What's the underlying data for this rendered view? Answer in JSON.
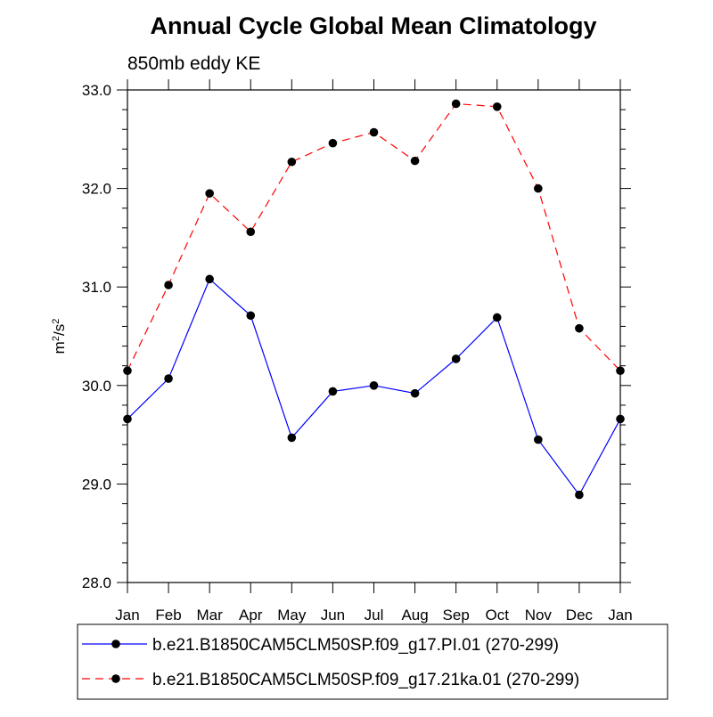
{
  "chart_data": {
    "type": "line",
    "title": "Annual Cycle Global Mean Climatology",
    "subtitle": "850mb eddy KE",
    "ylabel": "m²/s²",
    "xlabel": "",
    "categories": [
      "Jan",
      "Feb",
      "Mar",
      "Apr",
      "May",
      "Jun",
      "Jul",
      "Aug",
      "Sep",
      "Oct",
      "Nov",
      "Dec",
      "Jan"
    ],
    "ylim": [
      28.0,
      33.0
    ],
    "yticks": [
      28.0,
      29.0,
      30.0,
      31.0,
      32.0,
      33.0
    ],
    "ytick_labels": [
      "28.0",
      "29.0",
      "30.0",
      "31.0",
      "32.0",
      "33.0"
    ],
    "grid": false,
    "legend_position": "bottom",
    "series": [
      {
        "name": "b.e21.B1850CAM5CLM50SP.f09_g17.PI.01 (270-299)",
        "color": "#0000ff",
        "line_style": "solid",
        "marker": "dot",
        "values": [
          29.66,
          30.07,
          31.08,
          30.71,
          29.47,
          29.94,
          30.0,
          29.92,
          30.27,
          30.69,
          29.45,
          28.89,
          29.66
        ]
      },
      {
        "name": "b.e21.B1850CAM5CLM50SP.f09_g17.21ka.01 (270-299)",
        "color": "#ff0000",
        "line_style": "dashed",
        "marker": "dot",
        "values": [
          30.15,
          31.02,
          31.95,
          31.56,
          32.27,
          32.46,
          32.57,
          32.28,
          32.86,
          32.83,
          32.0,
          30.58,
          30.15
        ]
      }
    ]
  }
}
